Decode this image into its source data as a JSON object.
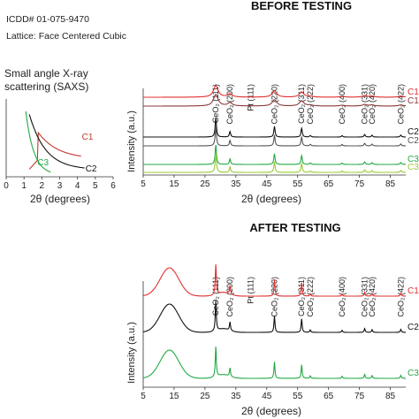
{
  "header": {
    "icdd": "ICDD# 01-075-9470",
    "lattice": "Lattice: Face Centered Cubic"
  },
  "chart_data": [
    {
      "id": "before",
      "type": "line",
      "title": "BEFORE TESTING",
      "xlabel": "2θ (degrees)",
      "ylabel": "Intensity (a.u.)",
      "xlim": [
        5,
        90
      ],
      "xticks": [
        5,
        15,
        25,
        35,
        45,
        55,
        65,
        75,
        85
      ],
      "peak_labels": [
        {
          "label": "CeO₂ (111)",
          "x": 28.5
        },
        {
          "label": "CeO₂ (200)",
          "x": 33.1
        },
        {
          "label": "Pt (111)",
          "x": 39.8
        },
        {
          "label": "CeO₂ (220)",
          "x": 47.5
        },
        {
          "label": "CeO₂ (311)",
          "x": 56.3
        },
        {
          "label": "CeO₂ (222)",
          "x": 59.1
        },
        {
          "label": "CeO₂ (400)",
          "x": 69.4
        },
        {
          "label": "CeO₂ (331)",
          "x": 76.7
        },
        {
          "label": "CeO₂ (420)",
          "x": 79.1
        },
        {
          "label": "CeO₂ (422)",
          "x": 88.4
        }
      ],
      "series": [
        {
          "name": "C1",
          "color": "#e03030",
          "offset": 88,
          "broad": 1
        },
        {
          "name": "C1",
          "color": "#8c3a3a",
          "offset": 78,
          "broad": 1
        },
        {
          "name": "C2",
          "color": "#111111",
          "offset": 43,
          "broad": 0
        },
        {
          "name": "C2",
          "color": "#555555",
          "offset": 33,
          "broad": 0
        },
        {
          "name": "C3",
          "color": "#22aa44",
          "offset": 12,
          "broad": 0
        },
        {
          "name": "C3",
          "color": "#99cc33",
          "offset": 3,
          "broad": 0
        }
      ]
    },
    {
      "id": "after",
      "type": "line",
      "title": "AFTER TESTING",
      "xlabel": "2θ (degrees)",
      "ylabel": "Intensity (a.u.)",
      "xlim": [
        5,
        90
      ],
      "xticks": [
        5,
        15,
        25,
        35,
        45,
        55,
        65,
        75,
        85
      ],
      "peak_labels": [
        {
          "label": "CeO₂ (111)",
          "x": 28.5
        },
        {
          "label": "CeO₂ (200)",
          "x": 33.1
        },
        {
          "label": "Pt (111)",
          "x": 39.8
        },
        {
          "label": "CeO₂ (220)",
          "x": 47.5
        },
        {
          "label": "CeO₂ (311)",
          "x": 56.3
        },
        {
          "label": "CeO₂ (222)",
          "x": 59.1
        },
        {
          "label": "CeO₂ (400)",
          "x": 69.4
        },
        {
          "label": "CeO₂ (331)",
          "x": 76.7
        },
        {
          "label": "CeO₂ (420)",
          "x": 79.1
        },
        {
          "label": "CeO₂ (422)",
          "x": 88.4
        }
      ],
      "series": [
        {
          "name": "C1",
          "color": "#e03030",
          "offset": 103,
          "hump": 1
        },
        {
          "name": "C2",
          "color": "#111111",
          "offset": 62,
          "hump": 1
        },
        {
          "name": "C3",
          "color": "#22aa44",
          "offset": 10,
          "hump": 1
        }
      ]
    },
    {
      "id": "saxs",
      "type": "line",
      "title": "Small angle X-ray scattering (SAXS)",
      "xlabel": "2θ (degrees)",
      "ylabel": "",
      "xlim": [
        0,
        6
      ],
      "xticks": [
        0,
        1,
        2,
        3,
        4,
        5,
        6
      ],
      "series": [
        {
          "name": "C1",
          "color": "#c0392b"
        },
        {
          "name": "C2",
          "color": "#111111"
        },
        {
          "name": "C3",
          "color": "#22aa44"
        }
      ]
    }
  ]
}
